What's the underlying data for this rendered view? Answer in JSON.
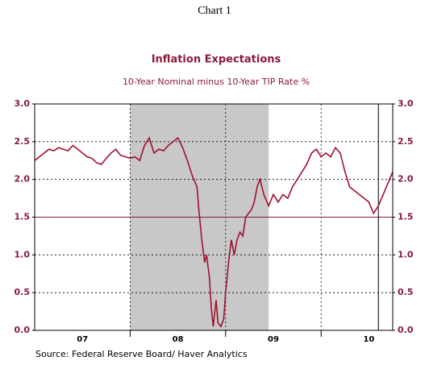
{
  "chart_data": {
    "type": "line",
    "heading": "Chart 1",
    "title": "Inflation Expectations",
    "subtitle": "10-Year Nominal minus 10-Year TIP Rate  %",
    "source": "Source:  Federal Reserve Board/ Haver Analytics",
    "color": "#a0102e",
    "x": [
      2007.0,
      2007.05,
      2007.1,
      2007.15,
      2007.2,
      2007.25,
      2007.3,
      2007.35,
      2007.4,
      2007.45,
      2007.5,
      2007.55,
      2007.6,
      2007.65,
      2007.7,
      2007.75,
      2007.8,
      2007.85,
      2007.9,
      2007.95,
      2008.0,
      2008.05,
      2008.1,
      2008.15,
      2008.2,
      2008.25,
      2008.3,
      2008.35,
      2008.4,
      2008.45,
      2008.5,
      2008.55,
      2008.6,
      2008.65,
      2008.7,
      2008.72,
      2008.75,
      2008.78,
      2008.8,
      2008.83,
      2008.85,
      2008.87,
      2008.9,
      2008.92,
      2008.95,
      2008.98,
      2009.0,
      2009.03,
      2009.06,
      2009.09,
      2009.12,
      2009.15,
      2009.18,
      2009.21,
      2009.24,
      2009.27,
      2009.3,
      2009.33,
      2009.36,
      2009.4,
      2009.45,
      2009.5,
      2009.55,
      2009.6,
      2009.65,
      2009.7,
      2009.75,
      2009.8,
      2009.85,
      2009.9,
      2009.95,
      2010.0,
      2010.05,
      2010.1,
      2010.15,
      2010.2,
      2010.25,
      2010.3,
      2010.35,
      2010.4,
      2010.45,
      2010.5,
      2010.55,
      2010.6,
      2010.65,
      2010.7,
      2010.75
    ],
    "values": [
      2.25,
      2.3,
      2.35,
      2.4,
      2.38,
      2.42,
      2.4,
      2.38,
      2.45,
      2.4,
      2.35,
      2.3,
      2.28,
      2.22,
      2.2,
      2.28,
      2.35,
      2.4,
      2.32,
      2.3,
      2.28,
      2.3,
      2.25,
      2.45,
      2.55,
      2.35,
      2.4,
      2.38,
      2.45,
      2.5,
      2.55,
      2.42,
      2.25,
      2.05,
      1.9,
      1.6,
      1.2,
      0.9,
      1.0,
      0.7,
      0.3,
      0.05,
      0.4,
      0.1,
      0.05,
      0.15,
      0.5,
      0.9,
      1.2,
      1.0,
      1.2,
      1.3,
      1.25,
      1.5,
      1.55,
      1.6,
      1.7,
      1.9,
      2.0,
      1.8,
      1.65,
      1.8,
      1.7,
      1.8,
      1.75,
      1.9,
      2.0,
      2.1,
      2.2,
      2.35,
      2.4,
      2.3,
      2.35,
      2.3,
      2.42,
      2.35,
      2.1,
      1.9,
      1.85,
      1.8,
      1.75,
      1.7,
      1.55,
      1.65,
      1.8,
      1.95,
      2.1
    ],
    "xlim": [
      2007.0,
      2010.75
    ],
    "xticks": [
      {
        "value": 2007.5,
        "label": "07"
      },
      {
        "value": 2008.5,
        "label": "08"
      },
      {
        "value": 2009.5,
        "label": "09"
      },
      {
        "value": 2010.5,
        "label": "10"
      }
    ],
    "xgrid": [
      2008,
      2009,
      2010
    ],
    "ylim": [
      0,
      3
    ],
    "yticks": [
      {
        "value": 0,
        "label": "0.0"
      },
      {
        "value": 0.5,
        "label": "0.5"
      },
      {
        "value": 1,
        "label": "1.0"
      },
      {
        "value": 1.5,
        "label": "1.5"
      },
      {
        "value": 2,
        "label": "2.0"
      },
      {
        "value": 2.5,
        "label": "2.5"
      },
      {
        "value": 3,
        "label": "3.0"
      }
    ],
    "grid": true,
    "shade": [
      2008.0,
      2009.45
    ],
    "hline": 1.5,
    "vline": 2010.6
  }
}
